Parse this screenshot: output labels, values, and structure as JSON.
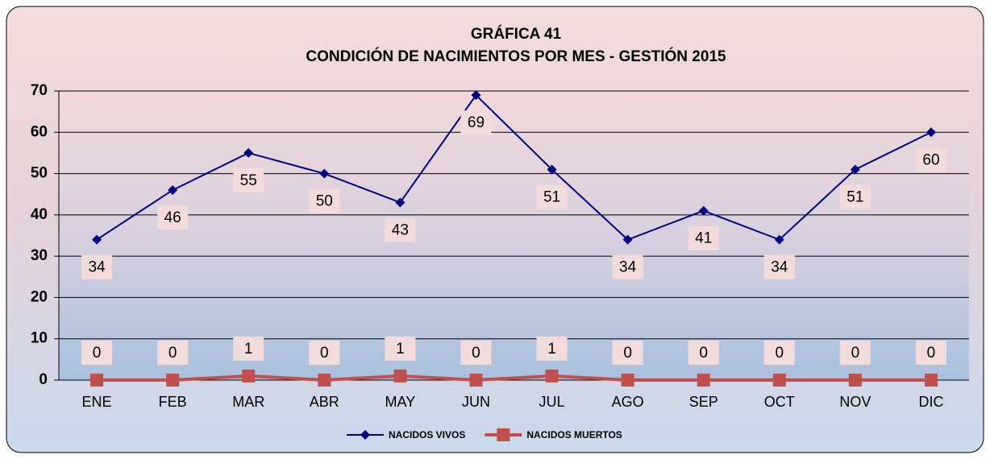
{
  "chart_data": {
    "type": "line",
    "title": "GRÁFICA 41",
    "subtitle": "CONDICIÓN DE NACIMIENTOS POR MES - GESTIÓN 2015",
    "categories": [
      "ENE",
      "FEB",
      "MAR",
      "ABR",
      "MAY",
      "JUN",
      "JUL",
      "AGO",
      "SEP",
      "OCT",
      "NOV",
      "DIC"
    ],
    "series": [
      {
        "name": "NACIDOS VIVOS",
        "color": "#000080",
        "marker": "diamond",
        "label_position": "below",
        "values": [
          34,
          46,
          55,
          50,
          43,
          69,
          51,
          34,
          41,
          34,
          51,
          60
        ]
      },
      {
        "name": "NACIDOS MUERTOS",
        "color": "#c0504d",
        "marker": "square",
        "label_position": "above",
        "values": [
          0,
          0,
          1,
          0,
          1,
          0,
          1,
          0,
          0,
          0,
          0,
          0
        ]
      }
    ],
    "ylim": [
      0,
      70
    ],
    "yticks": [
      0,
      10,
      20,
      30,
      40,
      50,
      60,
      70
    ],
    "grid": true,
    "legend": "bottom"
  }
}
